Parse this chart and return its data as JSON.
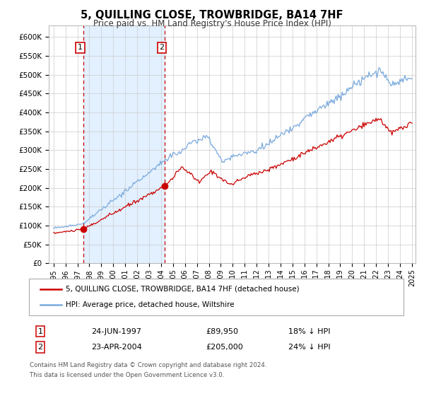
{
  "title": "5, QUILLING CLOSE, TROWBRIDGE, BA14 7HF",
  "subtitle": "Price paid vs. HM Land Registry's House Price Index (HPI)",
  "legend_line1": "5, QUILLING CLOSE, TROWBRIDGE, BA14 7HF (detached house)",
  "legend_line2": "HPI: Average price, detached house, Wiltshire",
  "annotation1_date": "24-JUN-1997",
  "annotation1_price": "£89,950",
  "annotation1_hpi": "18% ↓ HPI",
  "annotation2_date": "23-APR-2004",
  "annotation2_price": "£205,000",
  "annotation2_hpi": "24% ↓ HPI",
  "footer1": "Contains HM Land Registry data © Crown copyright and database right 2024.",
  "footer2": "This data is licensed under the Open Government Licence v3.0.",
  "red_color": "#cc0000",
  "blue_color": "#7aaadd",
  "bg_shading_color": "#ddeeff",
  "grid_color": "#cccccc",
  "sale1_year": 1997.48,
  "sale1_price": 89950,
  "sale2_year": 2004.31,
  "sale2_price": 205000,
  "ylim_max": 630000,
  "ylim_min": 0,
  "start_year": 1995.0,
  "end_year": 2025.0
}
